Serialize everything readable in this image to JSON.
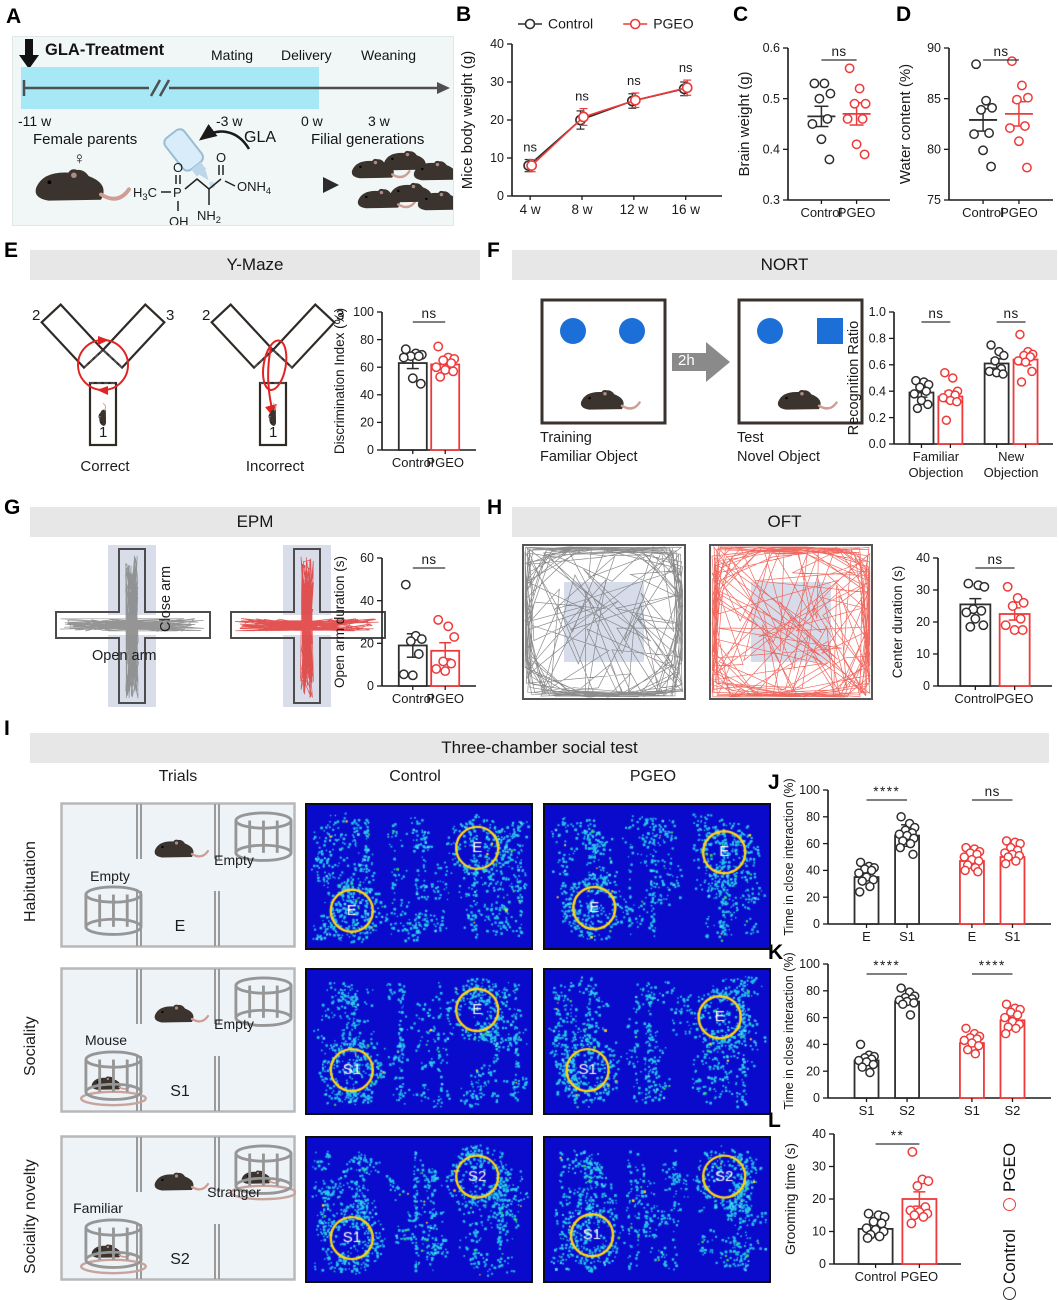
{
  "panel_letters": {
    "A": "A",
    "B": "B",
    "C": "C",
    "D": "D",
    "E": "E",
    "F": "F",
    "G": "G",
    "H": "H",
    "I": "I",
    "J": "J",
    "K": "K",
    "L": "L"
  },
  "colors": {
    "control": "#2e2e2e",
    "pgeo": "#ee3a3a",
    "red_arrow": "#e02424",
    "banner_bg": "#e7e7e7",
    "panelA_band": "#a6e8f6",
    "heatmap_bg": "#0a0acd",
    "heatmap_dot": "#27c8ec",
    "heatmap_ring": "#ffd711",
    "nort_blue": "#1b6fd6",
    "epm_shade": "#d8dde9",
    "oft_center": "#cfd6e6"
  },
  "panelA": {
    "treatment": "GLA-Treatment",
    "mating": "Mating",
    "delivery": "Delivery",
    "weaning": "Weaning",
    "t0": "-11 w",
    "t1": "-3 w",
    "t2": "0 w",
    "t3": "3 w",
    "female": "Female parents",
    "female_symbol": "♀",
    "gla": "GLA",
    "filial": "Filial generations",
    "chem": {
      "h3c": "H3C",
      "p": "P",
      "o_top": "O",
      "oh": "OH",
      "o_carbonyl": "O",
      "onh4": "ONH4",
      "nh2": "NH2"
    }
  },
  "panelE": {
    "banner": "Y-Maze",
    "arm2": "2",
    "arm3": "3",
    "arm1": "1",
    "correct": "Correct",
    "incorrect": "Incorrect"
  },
  "panelF": {
    "banner": "NORT",
    "training_line1": "Training",
    "training_line2": "Familiar Object",
    "test_line1": "Test",
    "test_line2": "Novel Object",
    "delay": "2h"
  },
  "panelG": {
    "banner": "EPM",
    "close_arm": "Close arm",
    "open_arm": "Open arm"
  },
  "panelH": {
    "banner": "OFT"
  },
  "panelI": {
    "banner": "Three-chamber social test",
    "col_trials": "Trials",
    "col_control": "Control",
    "col_pgeo": "PGEO",
    "row0": "Habituation",
    "row1": "Sociality",
    "row2": "Sociality novelty",
    "trials": [
      {
        "left_label": "Empty",
        "left_mouse": false,
        "right_label": "Empty",
        "right_mouse": false,
        "center": "E"
      },
      {
        "left_label": "Mouse",
        "left_mouse": true,
        "right_label": "Empty",
        "right_mouse": false,
        "center": "S1"
      },
      {
        "left_label": "Familiar",
        "left_mouse": true,
        "right_label": "Stranger",
        "right_mouse": true,
        "center": "S2"
      }
    ],
    "heatmaps": [
      {
        "seed": 11,
        "markers": [
          {
            "text": "E",
            "x": 0.2,
            "y": 0.74
          },
          {
            "text": "E",
            "x": 0.76,
            "y": 0.3
          }
        ]
      },
      {
        "seed": 12,
        "markers": [
          {
            "text": "E",
            "x": 0.22,
            "y": 0.72
          },
          {
            "text": "E",
            "x": 0.8,
            "y": 0.33
          }
        ]
      },
      {
        "seed": 13,
        "markers": [
          {
            "text": "S1",
            "x": 0.2,
            "y": 0.7
          },
          {
            "text": "E",
            "x": 0.76,
            "y": 0.28
          }
        ]
      },
      {
        "seed": 14,
        "markers": [
          {
            "text": "S1",
            "x": 0.19,
            "y": 0.7
          },
          {
            "text": "E",
            "x": 0.78,
            "y": 0.33
          }
        ]
      },
      {
        "seed": 15,
        "markers": [
          {
            "text": "S1",
            "x": 0.2,
            "y": 0.7
          },
          {
            "text": "S2",
            "x": 0.76,
            "y": 0.27
          }
        ]
      },
      {
        "seed": 16,
        "markers": [
          {
            "text": "S1",
            "x": 0.21,
            "y": 0.68
          },
          {
            "text": "S2",
            "x": 0.8,
            "y": 0.27
          }
        ]
      }
    ]
  },
  "legend": {
    "pgeo": "PGEO",
    "control": "Control"
  },
  "chart_data": [
    {
      "id": "B",
      "type": "line",
      "ylabel": "Mice body weight (g)",
      "ylim": [
        0,
        40
      ],
      "yticks": [
        0,
        10,
        20,
        30,
        40
      ],
      "ydec": 0,
      "categories": [
        "4 w",
        "8 w",
        "12 w",
        "16 w"
      ],
      "series": [
        {
          "name": "Control",
          "color": "#2e2e2e",
          "values": [
            8,
            20,
            25,
            28.2
          ],
          "errors": [
            1.6,
            2.4,
            1.9,
            1.8
          ]
        },
        {
          "name": "PGEO",
          "color": "#ee3a3a",
          "values": [
            8,
            20.8,
            25.2,
            28.5
          ],
          "errors": [
            1.6,
            2.2,
            1.9,
            2.0
          ]
        }
      ],
      "point_annotations": [
        "ns",
        "ns",
        "ns",
        "ns"
      ]
    },
    {
      "id": "C",
      "type": "scatter",
      "ylabel": "Brain weight (g)",
      "ylim": [
        0.3,
        0.6
      ],
      "yticks": [
        0.3,
        0.4,
        0.5,
        0.6
      ],
      "ydec": 1,
      "columns": [
        {
          "label": "Control",
          "color": "#2e2e2e",
          "mean": 0.465,
          "sem": 0.02,
          "points": [
            0.53,
            0.53,
            0.51,
            0.5,
            0.46,
            0.45,
            0.42,
            0.38
          ]
        },
        {
          "label": "PGEO",
          "color": "#ee3a3a",
          "mean": 0.47,
          "sem": 0.022,
          "points": [
            0.56,
            0.52,
            0.49,
            0.49,
            0.46,
            0.46,
            0.41,
            0.39
          ]
        }
      ],
      "brackets": [
        {
          "a": 0,
          "b": 1,
          "text": "ns"
        }
      ]
    },
    {
      "id": "D",
      "type": "scatter",
      "ylabel": "Water content (%)",
      "ylim": [
        75,
        90
      ],
      "yticks": [
        75,
        80,
        85,
        90
      ],
      "ydec": 0,
      "columns": [
        {
          "label": "Control",
          "color": "#2e2e2e",
          "mean": 82.9,
          "sem": 1.1,
          "points": [
            88.4,
            84.8,
            84.1,
            83.9,
            81.6,
            81.5,
            79.9,
            78.3
          ]
        },
        {
          "label": "PGEO",
          "color": "#ee3a3a",
          "mean": 83.5,
          "sem": 1.2,
          "points": [
            88.7,
            86.3,
            85.1,
            84.9,
            82.3,
            82.1,
            80.8,
            78.2
          ]
        }
      ],
      "brackets": [
        {
          "a": 0,
          "b": 1,
          "text": "ns"
        }
      ]
    },
    {
      "id": "E",
      "type": "bar",
      "ylabel": "Discrimination Index (%)",
      "ylim": [
        0,
        100
      ],
      "yticks": [
        0,
        20,
        40,
        60,
        80,
        100
      ],
      "ydec": 0,
      "columns": [
        {
          "label": "Control",
          "color": "#2e2e2e",
          "bar": 63,
          "sem": 4,
          "points": [
            73,
            70,
            69,
            68,
            68,
            67,
            52,
            48
          ]
        },
        {
          "label": "PGEO",
          "color": "#ee3a3a",
          "bar": 62,
          "sem": 3,
          "points": [
            75,
            67,
            66,
            65,
            63,
            60,
            58,
            57,
            53
          ]
        }
      ],
      "brackets": [
        {
          "a": 0,
          "b": 1,
          "text": "ns"
        }
      ]
    },
    {
      "id": "F",
      "type": "bar",
      "ylabel": "Recognition Ratio",
      "ylim": [
        0,
        1
      ],
      "yticks": [
        0,
        0.2,
        0.4,
        0.6,
        0.8,
        1
      ],
      "ydec": 1,
      "columns": [
        {
          "label": "",
          "color": "#2e2e2e",
          "bar": 0.39,
          "sem": 0.035,
          "points": [
            0.48,
            0.47,
            0.45,
            0.43,
            0.4,
            0.38,
            0.33,
            0.3,
            0.27
          ]
        },
        {
          "label": "",
          "color": "#ee3a3a",
          "bar": 0.36,
          "sem": 0.04,
          "points": [
            0.54,
            0.5,
            0.4,
            0.38,
            0.37,
            0.35,
            0.33,
            0.32,
            0.18
          ],
          "gapAfter": true
        },
        {
          "label": "",
          "color": "#2e2e2e",
          "bar": 0.61,
          "sem": 0.035,
          "points": [
            0.75,
            0.7,
            0.67,
            0.63,
            0.57,
            0.55,
            0.54,
            0.53
          ]
        },
        {
          "label": "",
          "color": "#ee3a3a",
          "bar": 0.64,
          "sem": 0.04,
          "points": [
            0.83,
            0.7,
            0.68,
            0.67,
            0.66,
            0.63,
            0.62,
            0.55,
            0.47
          ]
        }
      ],
      "brackets": [
        {
          "a": 0,
          "b": 1,
          "text": "ns"
        },
        {
          "a": 2,
          "b": 3,
          "text": "ns"
        }
      ],
      "group_labels": [
        {
          "a": 0,
          "b": 1,
          "lines": [
            "Familiar",
            "Objection"
          ]
        },
        {
          "a": 2,
          "b": 3,
          "lines": [
            "New",
            "Objection"
          ]
        }
      ]
    },
    {
      "id": "G",
      "type": "bar",
      "ylabel": "Open arm duration (s)",
      "ylim": [
        0,
        60
      ],
      "yticks": [
        0,
        20,
        40,
        60
      ],
      "ydec": 0,
      "columns": [
        {
          "label": "Control",
          "color": "#2e2e2e",
          "bar": 19,
          "sem": 5.5,
          "points": [
            47.5,
            23.5,
            22,
            21,
            15,
            5.5,
            5
          ]
        },
        {
          "label": "PGEO",
          "color": "#ee3a3a",
          "bar": 16.5,
          "sem": 3.8,
          "points": [
            31,
            28,
            23,
            11.5,
            10.5,
            8,
            7
          ]
        }
      ],
      "brackets": [
        {
          "a": 0,
          "b": 1,
          "text": "ns"
        }
      ]
    },
    {
      "id": "H",
      "type": "bar",
      "ylabel": "Center duration (s)",
      "ylim": [
        0,
        40
      ],
      "yticks": [
        0,
        10,
        20,
        30,
        40
      ],
      "ydec": 0,
      "columns": [
        {
          "label": "Control",
          "color": "#2e2e2e",
          "bar": 25.5,
          "sem": 1.8,
          "points": [
            32,
            31.5,
            31,
            24,
            23.5,
            23,
            21,
            19,
            18.5
          ]
        },
        {
          "label": "PGEO",
          "color": "#ee3a3a",
          "bar": 22.5,
          "sem": 1.9,
          "points": [
            31,
            27.5,
            26,
            25,
            21,
            19,
            17.5,
            17.5
          ]
        }
      ],
      "brackets": [
        {
          "a": 0,
          "b": 1,
          "text": "ns"
        }
      ]
    },
    {
      "id": "J",
      "type": "bar",
      "ylabel": "Time in close interaction (%)",
      "ylim": [
        0,
        100
      ],
      "yticks": [
        0,
        20,
        40,
        60,
        80,
        100
      ],
      "ydec": 0,
      "columns": [
        {
          "label": "E",
          "color": "#2e2e2e",
          "bar": 35,
          "sem": 2.5,
          "points": [
            46,
            43,
            42,
            41,
            40,
            38,
            35,
            33,
            32,
            28,
            24
          ]
        },
        {
          "label": "S1",
          "color": "#2e2e2e",
          "bar": 66,
          "sem": 8,
          "points": [
            80,
            75,
            72,
            70,
            68,
            67,
            66,
            64,
            62,
            60,
            57,
            52
          ],
          "gapAfter": true
        },
        {
          "label": "E",
          "color": "#ee3a3a",
          "bar": 47,
          "sem": 2,
          "points": [
            57,
            56,
            54,
            53,
            52,
            50,
            48,
            47,
            44,
            42,
            40,
            39
          ]
        },
        {
          "label": "S1",
          "color": "#ee3a3a",
          "bar": 50,
          "sem": 2,
          "points": [
            62,
            61,
            60,
            57,
            55,
            53,
            52,
            51,
            50,
            47,
            45
          ]
        }
      ],
      "brackets": [
        {
          "a": 0,
          "b": 1,
          "text": "****"
        },
        {
          "a": 2,
          "b": 3,
          "text": "ns"
        }
      ]
    },
    {
      "id": "K",
      "type": "bar",
      "ylabel": "Time in close interaction (%)",
      "ylim": [
        0,
        100
      ],
      "yticks": [
        0,
        20,
        40,
        60,
        80,
        100
      ],
      "ydec": 0,
      "columns": [
        {
          "label": "S1",
          "color": "#2e2e2e",
          "bar": 28,
          "sem": 2,
          "points": [
            40,
            32,
            31,
            30,
            29,
            28,
            27,
            25,
            23,
            19
          ]
        },
        {
          "label": "S2",
          "color": "#2e2e2e",
          "bar": 72,
          "sem": 2,
          "points": [
            82,
            79,
            76,
            75,
            74,
            73,
            72,
            71,
            70,
            62
          ],
          "gapAfter": true
        },
        {
          "label": "S1",
          "color": "#ee3a3a",
          "bar": 41,
          "sem": 2.5,
          "points": [
            52,
            48,
            46,
            45,
            44,
            43,
            41,
            39,
            36,
            33
          ]
        },
        {
          "label": "S2",
          "color": "#ee3a3a",
          "bar": 58,
          "sem": 2,
          "points": [
            70,
            67,
            66,
            64,
            62,
            60,
            57,
            55,
            53,
            52,
            48
          ]
        }
      ],
      "brackets": [
        {
          "a": 0,
          "b": 1,
          "text": "****"
        },
        {
          "a": 2,
          "b": 3,
          "text": "****"
        }
      ]
    },
    {
      "id": "L",
      "type": "bar",
      "ylabel": "Grooming time (s)",
      "ylim": [
        0,
        40
      ],
      "yticks": [
        0,
        10,
        20,
        30,
        40
      ],
      "ydec": 0,
      "columns": [
        {
          "label": "Control",
          "color": "#2e2e2e",
          "bar": 10.8,
          "sem": 1.1,
          "points": [
            15.5,
            15,
            14.5,
            13,
            12.5,
            11,
            10.5,
            10,
            9,
            8.5,
            8
          ]
        },
        {
          "label": "PGEO",
          "color": "#ee3a3a",
          "bar": 20,
          "sem": 2.2,
          "points": [
            34.5,
            26,
            25.5,
            24,
            17.5,
            16.5,
            16,
            15.5,
            15,
            14.5,
            12.5
          ]
        }
      ],
      "brackets": [
        {
          "a": 0,
          "b": 1,
          "text": "**"
        }
      ]
    }
  ]
}
